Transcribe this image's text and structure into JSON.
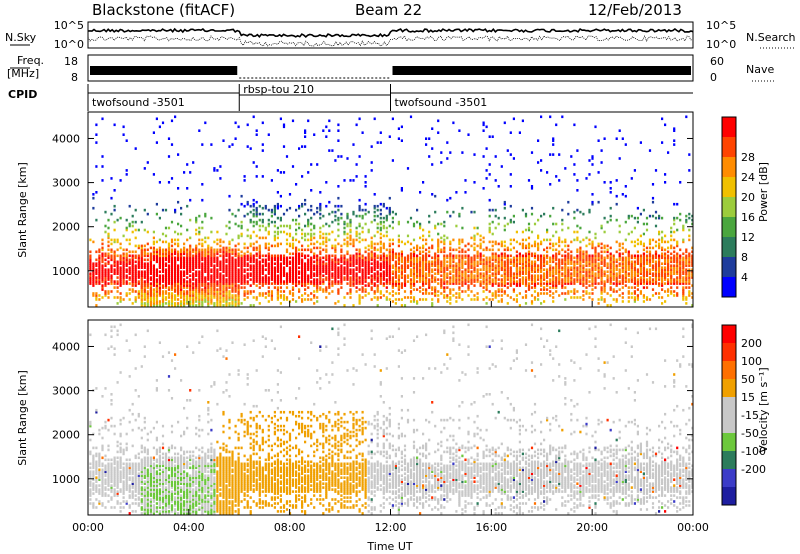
{
  "header": {
    "station": "Blackstone (fitACF)",
    "beam": "Beam 22",
    "date": "12/Feb/2013"
  },
  "strips": {
    "nsky_label": "N.Sky",
    "nsearch_label": "N.Search",
    "freq_label_1": "Freq.",
    "freq_label_2": "[MHz]",
    "nave_label": "Nave",
    "cpid_label": "CPID",
    "noise_ticks": [
      "10^5",
      "10^0"
    ],
    "freq_ticks": [
      "18",
      "8"
    ],
    "nave_ticks": [
      "60",
      "0"
    ],
    "cpid_segments": [
      {
        "label": "twofsound -3501",
        "start_h": 0,
        "end_h": 6
      },
      {
        "label": "rbsp-tou 210",
        "start_h": 6,
        "end_h": 12
      },
      {
        "label": "twofsound -3501",
        "start_h": 12,
        "end_h": 24
      }
    ]
  },
  "colors": {
    "power_scale": [
      "#0000ff",
      "#1e3c9c",
      "#2c7c5c",
      "#4aa63e",
      "#9ccc3c",
      "#f0c000",
      "#ff8c00",
      "#ff4400",
      "#ff0000"
    ],
    "velocity_scale": [
      "#1e1ea0",
      "#3c3cc8",
      "#2c7c5c",
      "#6cc83c",
      "#c8c8c8",
      "#c8c8c8",
      "#f0a000",
      "#ff7000",
      "#ff3000",
      "#ff0000"
    ]
  },
  "chart_data": [
    {
      "type": "heatmap",
      "name": "power-panel",
      "ylabel": "Slant Range [km]",
      "xlabel": "",
      "x_ticks": [
        "00:00",
        "04:00",
        "08:00",
        "12:00",
        "16:00",
        "20:00",
        "00:00"
      ],
      "y_ticks": [
        1000,
        2000,
        3000,
        4000
      ],
      "xlim": [
        0,
        24
      ],
      "ylim": [
        180,
        4600
      ],
      "colorbar": {
        "label": "Power [dB]",
        "ticks": [
          "4",
          "8",
          "12",
          "16",
          "20",
          "24",
          "28"
        ],
        "range": [
          0,
          30
        ]
      }
    },
    {
      "type": "heatmap",
      "name": "velocity-panel",
      "ylabel": "Slant Range [km]",
      "xlabel": "Time UT",
      "x_ticks": [
        "00:00",
        "04:00",
        "08:00",
        "12:00",
        "16:00",
        "20:00",
        "00:00"
      ],
      "y_ticks": [
        1000,
        2000,
        3000,
        4000
      ],
      "xlim": [
        0,
        24
      ],
      "ylim": [
        180,
        4600
      ],
      "colorbar": {
        "label": "Velocity [m s⁻¹]",
        "ticks": [
          "200",
          "100",
          "50",
          "15",
          "-15",
          "-50",
          "-100",
          "-200"
        ]
      }
    }
  ]
}
